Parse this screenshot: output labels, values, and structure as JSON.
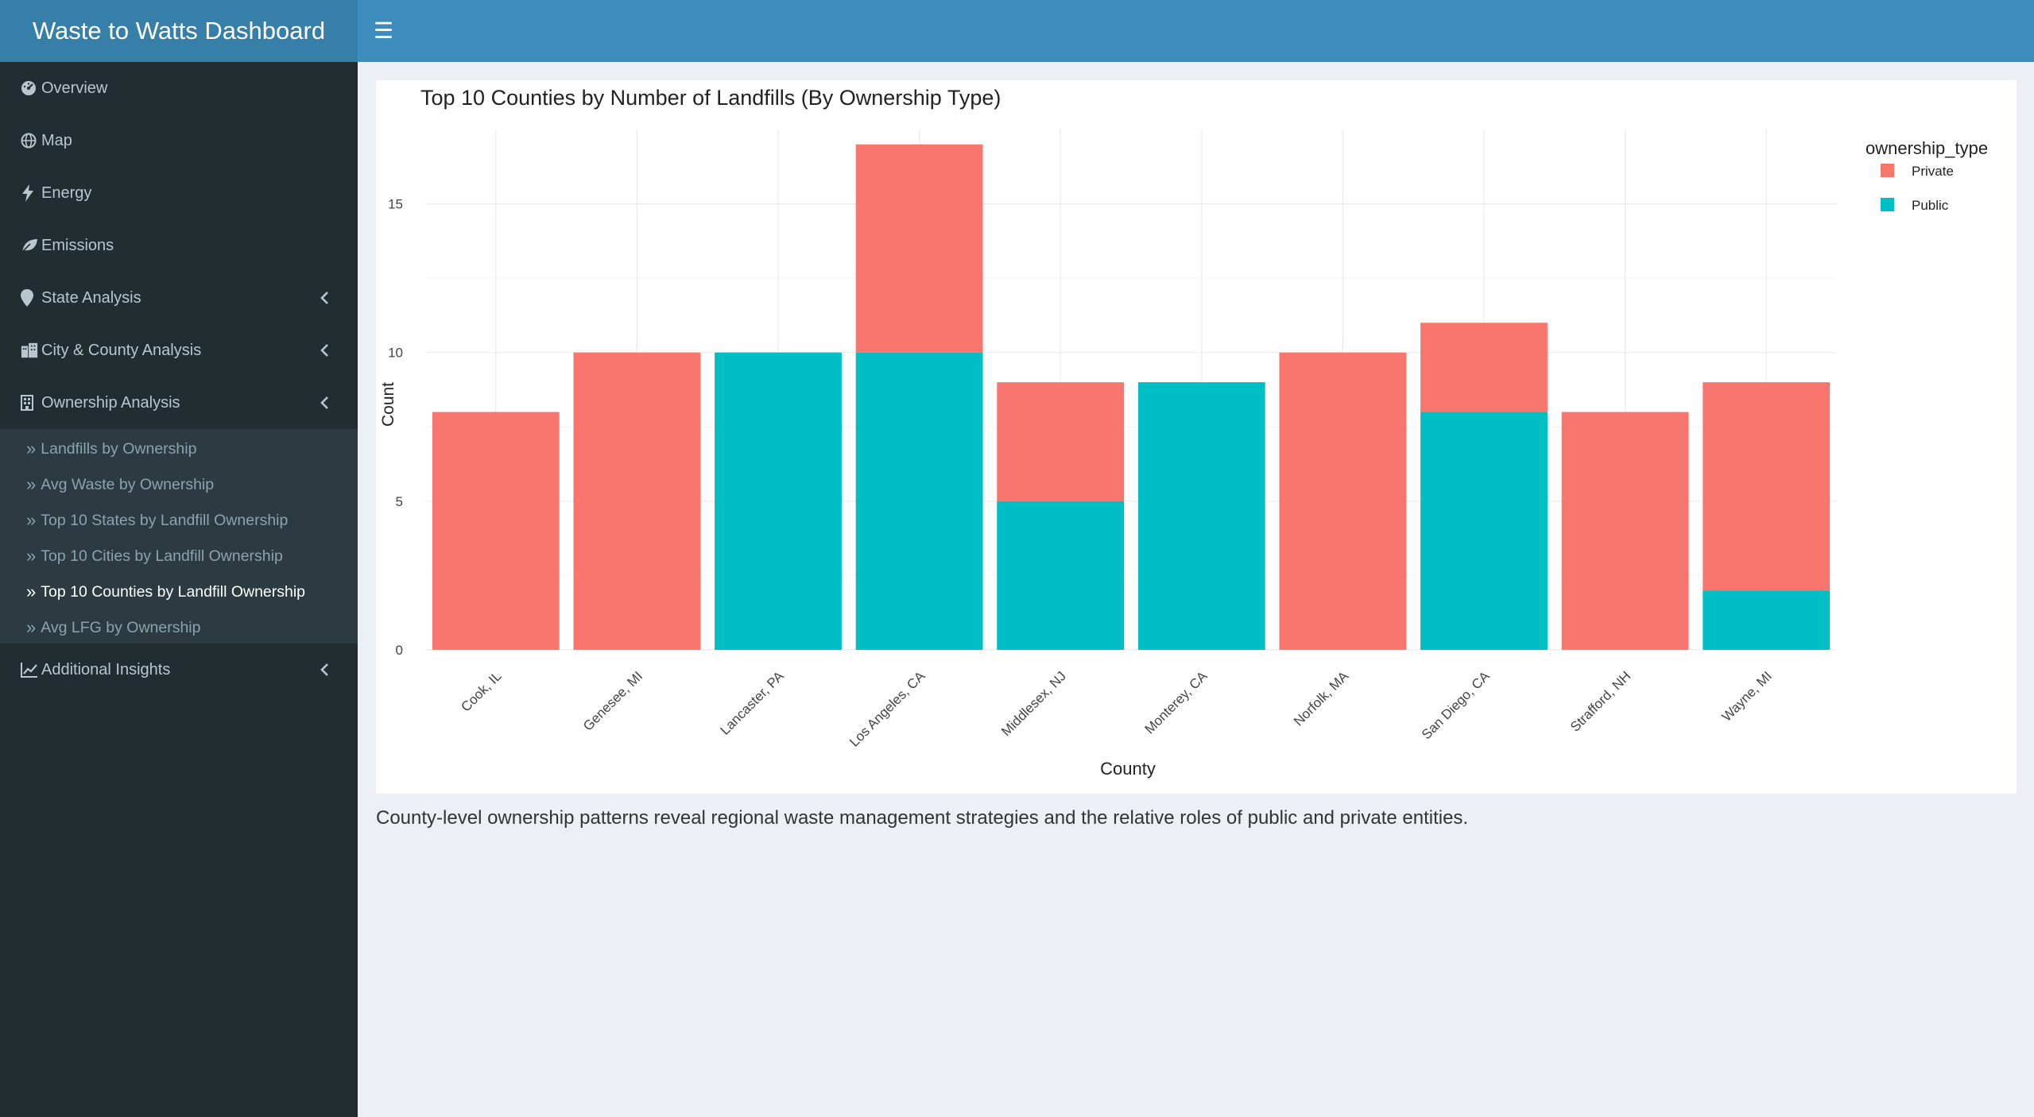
{
  "header": {
    "title": "Waste to Watts Dashboard",
    "toggle_icon": "hamburger-icon"
  },
  "sidebar": {
    "items": [
      {
        "label": "Overview",
        "icon": "tachometer-icon"
      },
      {
        "label": "Map",
        "icon": "globe-icon"
      },
      {
        "label": "Energy",
        "icon": "bolt-icon"
      },
      {
        "label": "Emissions",
        "icon": "leaf-icon"
      },
      {
        "label": "State Analysis",
        "icon": "map-marker-icon"
      },
      {
        "label": "City & County Analysis",
        "icon": "city-icon"
      },
      {
        "label": "Ownership Analysis",
        "icon": "building-icon"
      },
      {
        "label": "Additional Insights",
        "icon": "line-chart-icon"
      }
    ],
    "subitems": [
      {
        "label": "Landfills by Ownership"
      },
      {
        "label": "Avg Waste by Ownership"
      },
      {
        "label": "Top 10 States by Landfill Ownership"
      },
      {
        "label": "Top 10 Cities by Landfill Ownership"
      },
      {
        "label": "Top 10 Counties by Landfill Ownership",
        "active": true
      },
      {
        "label": "Avg LFG by Ownership"
      }
    ]
  },
  "caption": "County-level ownership patterns reveal regional waste management strategies and the relative roles of public and private entities.",
  "chart_data": {
    "type": "bar",
    "stacked": true,
    "title": "Top 10 Counties by Number of Landfills (By Ownership Type)",
    "xlabel": "County",
    "ylabel": "Count",
    "ylim": [
      0,
      17.5
    ],
    "yticks": [
      0,
      5,
      10,
      15
    ],
    "categories": [
      "Cook, IL",
      "Genesee, MI",
      "Lancaster, PA",
      "Los Angeles, CA",
      "Middlesex, NJ",
      "Monterey, CA",
      "Norfolk, MA",
      "San Diego, CA",
      "Strafford, NH",
      "Wayne, MI"
    ],
    "legend_title": "ownership_type",
    "legend_position": "right",
    "grid": true,
    "series": [
      {
        "name": "Public",
        "color": "#00BFC4",
        "values": [
          0,
          0,
          10,
          10,
          5,
          9,
          0,
          8,
          0,
          2
        ]
      },
      {
        "name": "Private",
        "color": "#F8766D",
        "values": [
          8,
          10,
          0,
          7,
          4,
          0,
          10,
          3,
          8,
          7
        ]
      }
    ]
  }
}
